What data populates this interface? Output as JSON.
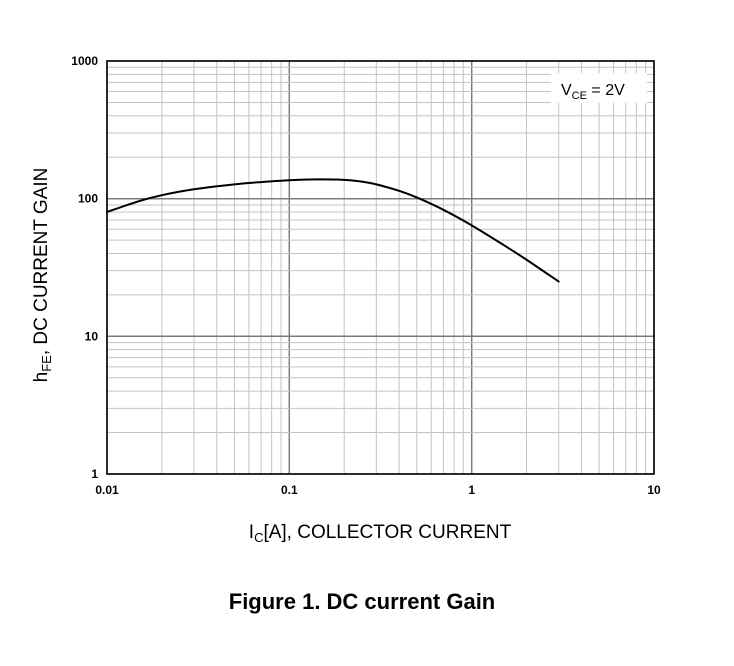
{
  "chart_data": {
    "type": "line",
    "title": "Figure 1. DC current Gain",
    "xlabel": {
      "main": "I",
      "sub": "C",
      "rest": "[A], COLLECTOR CURRENT"
    },
    "ylabel": {
      "main": "h",
      "sub": "FE",
      "rest": ", DC CURRENT GAIN"
    },
    "xscale": "log",
    "yscale": "log",
    "xlim": [
      0.01,
      10
    ],
    "ylim": [
      1,
      1000
    ],
    "x_ticks": [
      {
        "value": 0.01,
        "label": "0.01"
      },
      {
        "value": 0.1,
        "label": "0.1"
      },
      {
        "value": 1,
        "label": "1"
      },
      {
        "value": 10,
        "label": "10"
      }
    ],
    "y_ticks": [
      {
        "value": 1,
        "label": "1"
      },
      {
        "value": 10,
        "label": "10"
      },
      {
        "value": 100,
        "label": "100"
      },
      {
        "value": 1000,
        "label": "1000"
      }
    ],
    "grid": true,
    "annotation": {
      "main": "V",
      "sub": "CE",
      "rest": " = 2V",
      "placement": "top-right"
    },
    "series": [
      {
        "color": "#000000",
        "points": [
          {
            "x": 0.01,
            "y": 80
          },
          {
            "x": 0.015,
            "y": 96
          },
          {
            "x": 0.02,
            "y": 106
          },
          {
            "x": 0.03,
            "y": 117
          },
          {
            "x": 0.05,
            "y": 127
          },
          {
            "x": 0.07,
            "y": 132
          },
          {
            "x": 0.1,
            "y": 136
          },
          {
            "x": 0.14,
            "y": 138
          },
          {
            "x": 0.2,
            "y": 137
          },
          {
            "x": 0.25,
            "y": 133
          },
          {
            "x": 0.3,
            "y": 127
          },
          {
            "x": 0.4,
            "y": 114
          },
          {
            "x": 0.5,
            "y": 102
          },
          {
            "x": 0.7,
            "y": 83
          },
          {
            "x": 1,
            "y": 64
          },
          {
            "x": 1.5,
            "y": 46
          },
          {
            "x": 2,
            "y": 36
          },
          {
            "x": 3,
            "y": 25
          }
        ]
      }
    ]
  }
}
